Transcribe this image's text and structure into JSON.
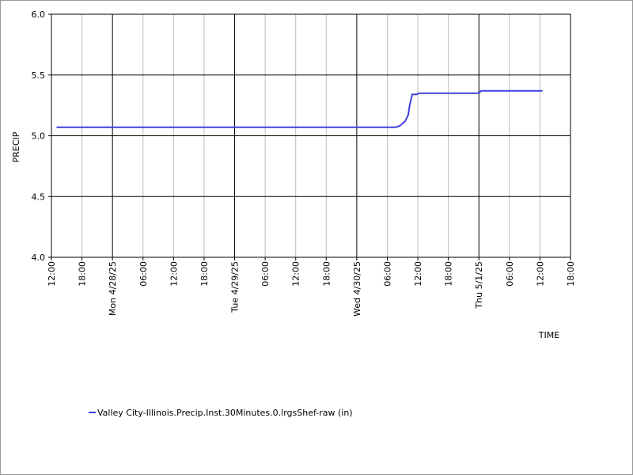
{
  "chart_data": {
    "type": "line",
    "y_label": "PRECIP",
    "x_label": "TIME",
    "xlim": [
      0,
      102
    ],
    "xticks": [
      {
        "value": 0,
        "label": "12:00"
      },
      {
        "value": 6,
        "label": "18:00"
      },
      {
        "value": 12,
        "label": "Mon 4/28/25"
      },
      {
        "value": 18,
        "label": "06:00"
      },
      {
        "value": 24,
        "label": "12:00"
      },
      {
        "value": 30,
        "label": "18:00"
      },
      {
        "value": 36,
        "label": "Tue 4/29/25"
      },
      {
        "value": 42,
        "label": "06:00"
      },
      {
        "value": 48,
        "label": "12:00"
      },
      {
        "value": 54,
        "label": "18:00"
      },
      {
        "value": 60,
        "label": "Wed 4/30/25"
      },
      {
        "value": 66,
        "label": "06:00"
      },
      {
        "value": 72,
        "label": "12:00"
      },
      {
        "value": 78,
        "label": "18:00"
      },
      {
        "value": 84,
        "label": "Thu 5/1/25"
      },
      {
        "value": 90,
        "label": "06:00"
      },
      {
        "value": 96,
        "label": "12:00"
      },
      {
        "value": 102,
        "label": "18:00"
      }
    ],
    "ylim": [
      4.0,
      6.0
    ],
    "yticks": [
      {
        "value": 4,
        "label": "4.0"
      },
      {
        "value": 4.5,
        "label": "4.5"
      },
      {
        "value": 5,
        "label": "5.0"
      },
      {
        "value": 5.5,
        "label": "5.5"
      },
      {
        "value": 6,
        "label": "6.0"
      }
    ],
    "grid": true,
    "x": [
      1,
      67.6,
      68.4,
      69.5,
      70.1,
      70.4,
      70.9,
      71.8,
      72.3,
      84,
      84.4,
      96.5
    ],
    "series": [
      {
        "name": "Valley City-Illinois.Precip.Inst.30Minutes.0.lrgsShef-raw (in)",
        "color": "#4040e0",
        "values": [
          5.07,
          5.07,
          5.08,
          5.12,
          5.17,
          5.25,
          5.34,
          5.34,
          5.35,
          5.35,
          5.37,
          5.37
        ]
      }
    ]
  }
}
